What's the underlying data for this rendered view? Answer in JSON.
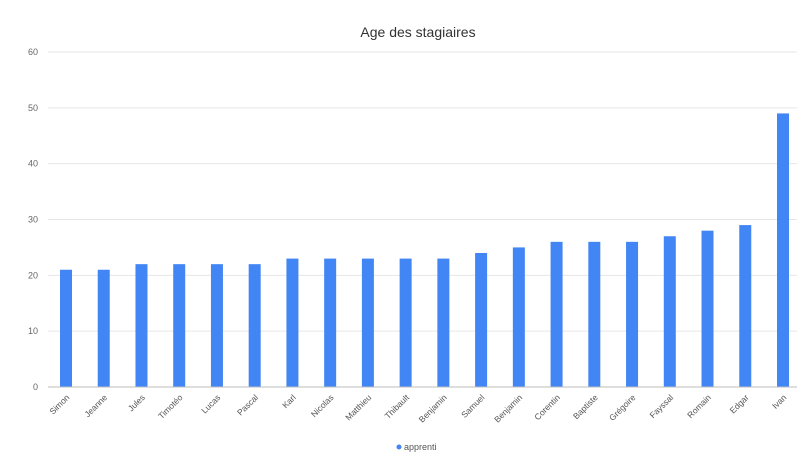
{
  "chart_data": {
    "type": "bar",
    "title": "Age des stagiaires",
    "xlabel": "",
    "ylabel": "",
    "ylim": [
      0,
      60
    ],
    "yticks": [
      0,
      10,
      20,
      30,
      40,
      50,
      60
    ],
    "grid": true,
    "legend_position": "bottom",
    "bar_color": "#4285f4",
    "categories": [
      "Simon",
      "Jeanne",
      "Jules",
      "Timotéo",
      "Lucas",
      "Pascal",
      "Karl",
      "Nicolas",
      "Matthieu",
      "Thibault",
      "Benjamin",
      "Samuel",
      "Benjamin",
      "Corentin",
      "Baptiste",
      "Grégoire",
      "Fayssal",
      "Romain",
      "Edgar",
      "Ivan"
    ],
    "series": [
      {
        "name": "apprenti",
        "values": [
          21,
          21,
          22,
          22,
          22,
          22,
          23,
          23,
          23,
          23,
          23,
          24,
          25,
          26,
          26,
          26,
          27,
          28,
          29,
          49
        ]
      }
    ]
  }
}
